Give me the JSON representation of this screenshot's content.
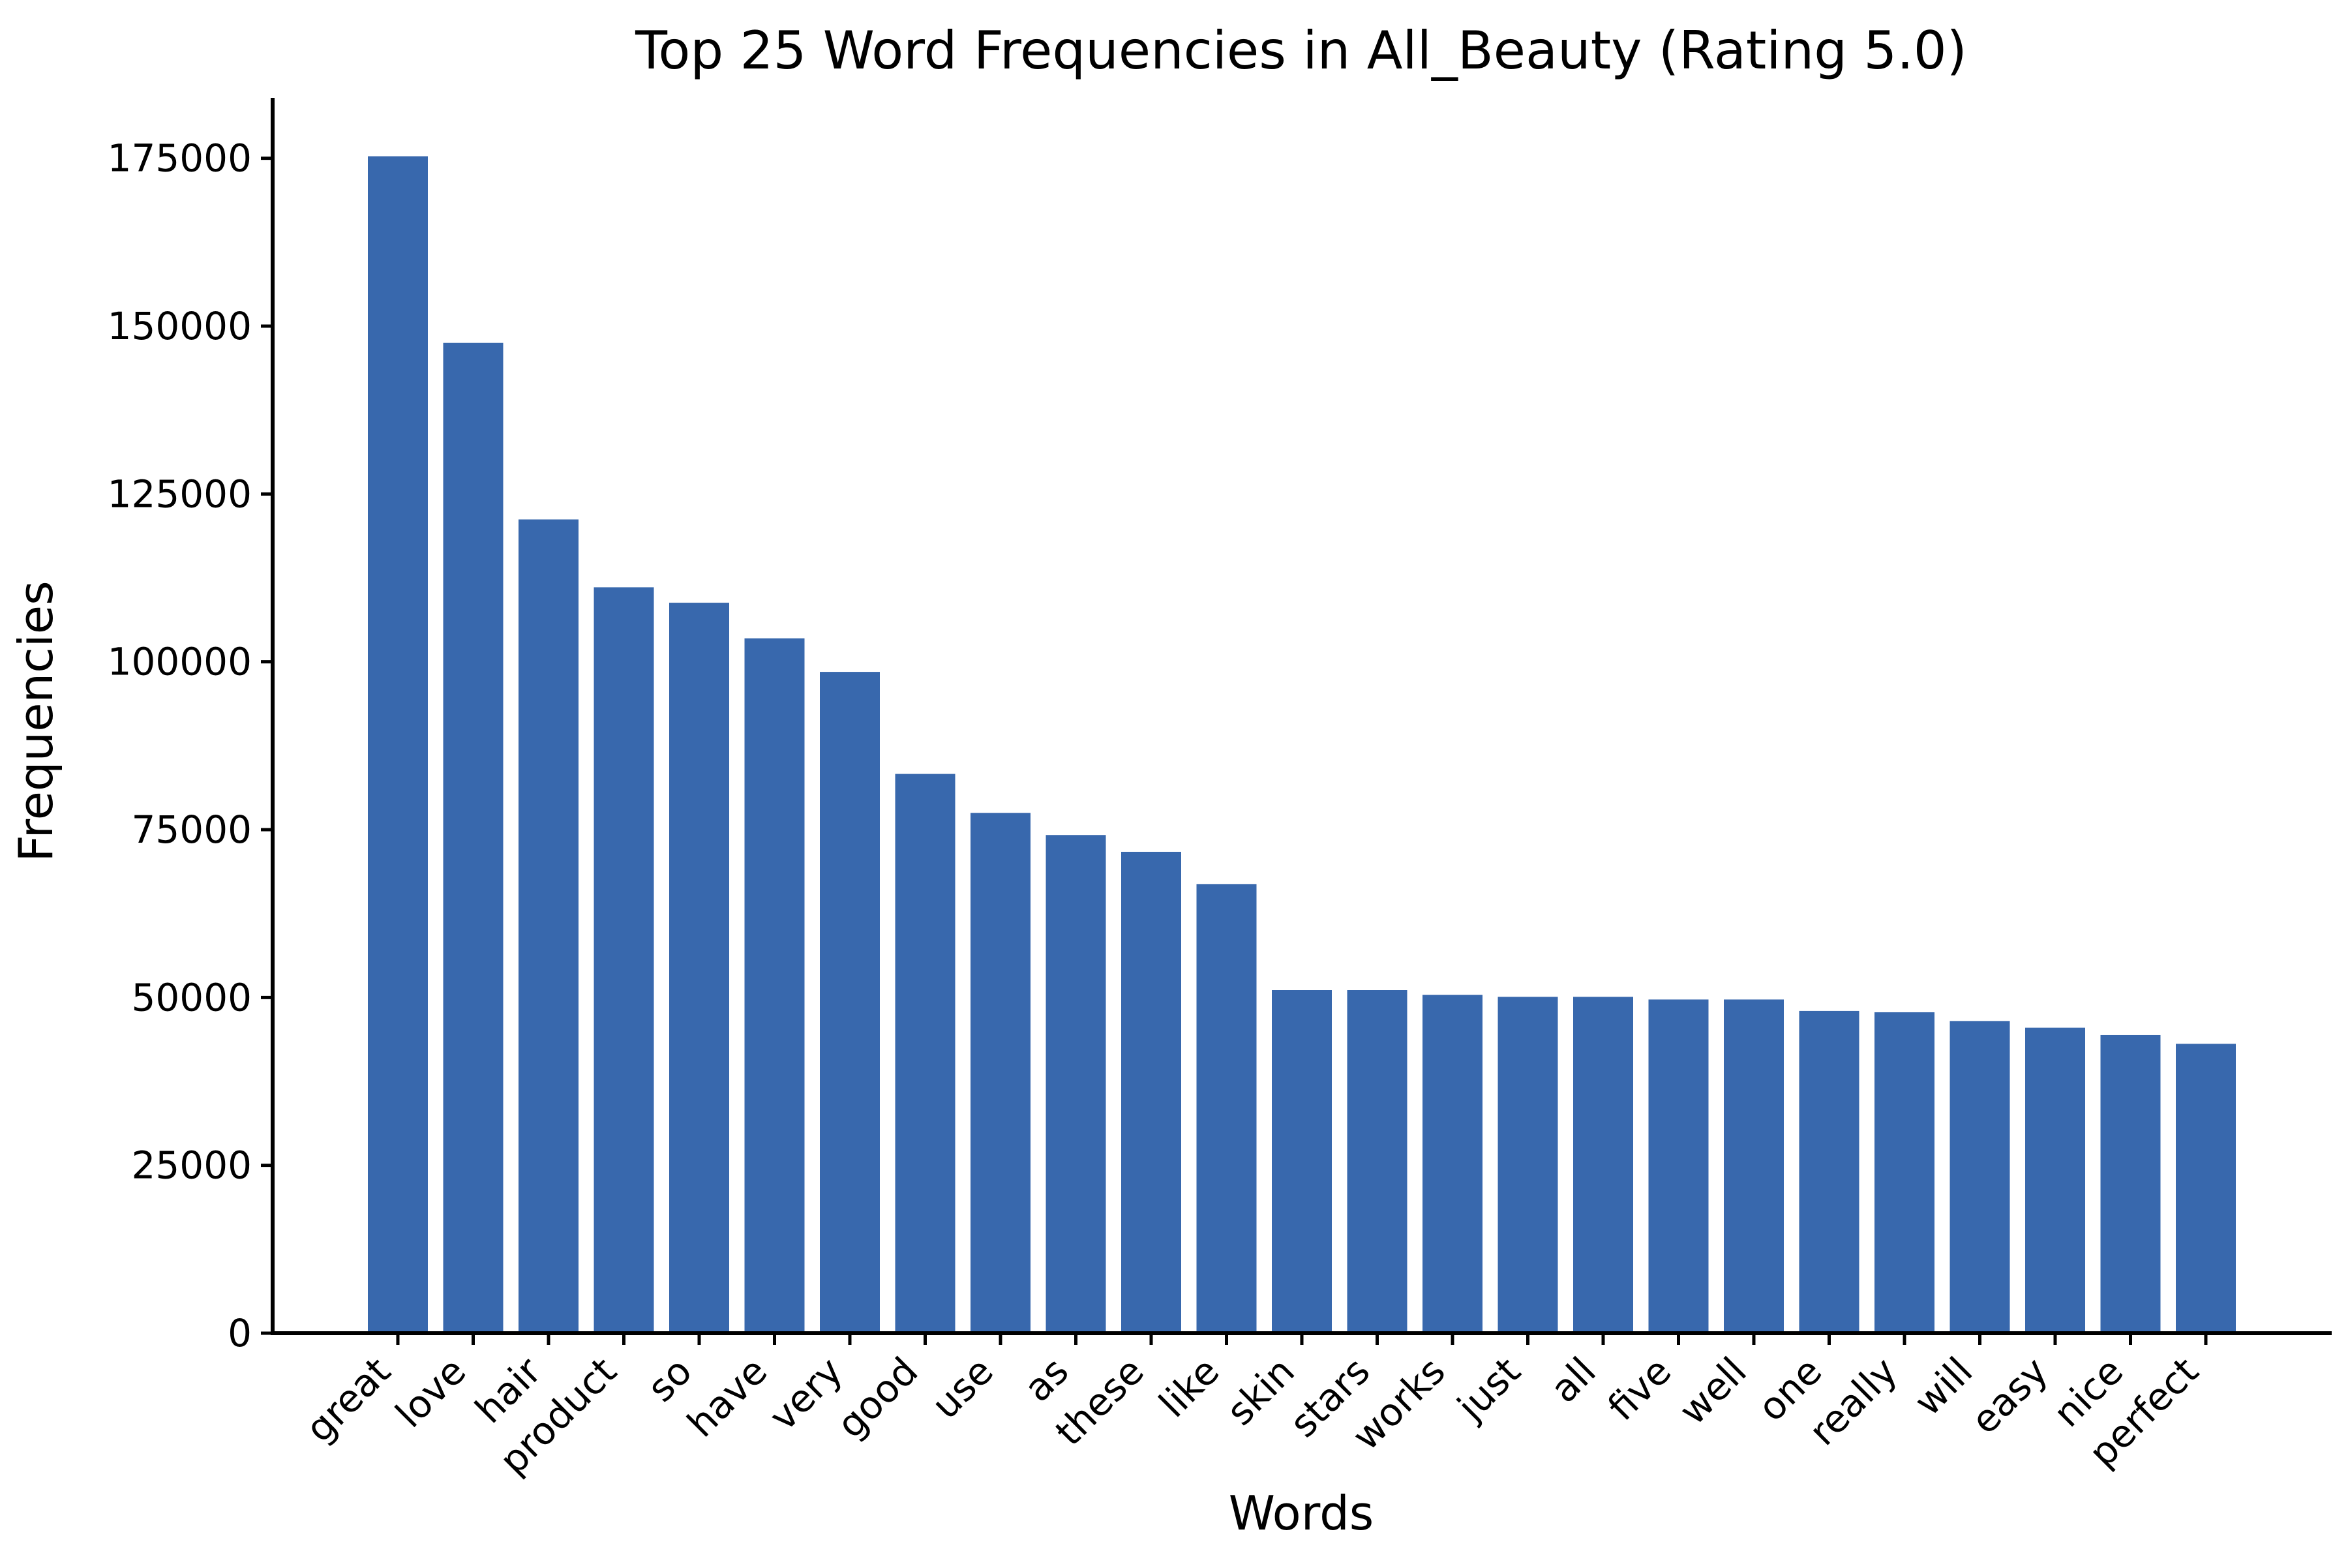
{
  "chart_data": {
    "type": "bar",
    "title": "Top 25 Word Frequencies in All_Beauty (Rating 5.0)",
    "xlabel": "Words",
    "ylabel": "Frequencies",
    "categories": [
      "great",
      "love",
      "hair",
      "product",
      "so",
      "have",
      "very",
      "good",
      "use",
      "as",
      "these",
      "like",
      "skin",
      "stars",
      "works",
      "just",
      "all",
      "five",
      "well",
      "one",
      "really",
      "will",
      "easy",
      "nice",
      "perfect"
    ],
    "values": [
      175300,
      147500,
      121200,
      111100,
      108800,
      103500,
      98500,
      83300,
      77500,
      74200,
      71700,
      66900,
      51100,
      51100,
      50400,
      50100,
      50100,
      49700,
      49700,
      48000,
      47800,
      46500,
      45500,
      44400,
      43100
    ],
    "ylim": [
      0,
      184000
    ],
    "yticks": [
      0,
      25000,
      50000,
      75000,
      100000,
      125000,
      150000,
      175000
    ],
    "ytick_labels": [
      "0",
      "25000",
      "50000",
      "75000",
      "100000",
      "125000",
      "150000",
      "175000"
    ],
    "grid": false,
    "bar_color": "#3868ad"
  }
}
